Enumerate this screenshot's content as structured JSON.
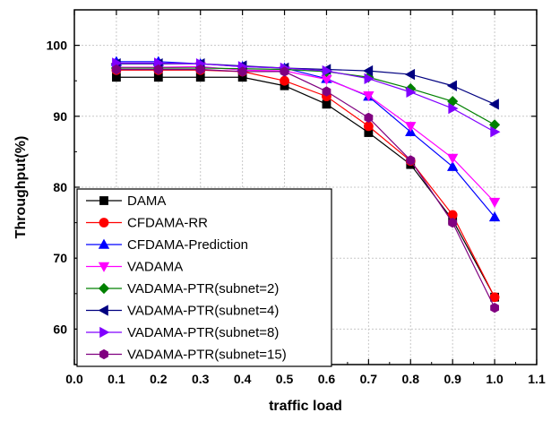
{
  "chart_data": {
    "type": "line",
    "title": "",
    "xlabel": "traffic load",
    "ylabel": "Throughput(%)",
    "xlim": [
      0.0,
      1.1
    ],
    "ylim": [
      55,
      105
    ],
    "xticks": [
      0.0,
      0.1,
      0.2,
      0.3,
      0.4,
      0.5,
      0.6,
      0.7,
      0.8,
      0.9,
      1.0,
      1.1
    ],
    "xtick_labels": [
      "0.0",
      "0.1",
      "0.2",
      "0.3",
      "0.4",
      "0.5",
      "0.6",
      "0.7",
      "0.8",
      "0.9",
      "1.0",
      "1.1"
    ],
    "yticks": [
      60,
      70,
      80,
      90,
      100
    ],
    "ytick_labels": [
      "60",
      "70",
      "80",
      "90",
      "100"
    ],
    "grid": true,
    "legend_position": "bottom-left",
    "x": [
      0.1,
      0.2,
      0.3,
      0.4,
      0.5,
      0.6,
      0.7,
      0.8,
      0.9,
      1.0
    ],
    "series": [
      {
        "name": "DAMA",
        "color": "#000000",
        "marker": "square",
        "values": [
          95.5,
          95.5,
          95.5,
          95.5,
          94.3,
          91.7,
          87.7,
          83.2,
          75.4,
          64.5
        ]
      },
      {
        "name": "CFDAMA-RR",
        "color": "#ff0000",
        "marker": "circle",
        "values": [
          96.5,
          96.5,
          96.5,
          96.3,
          95.0,
          92.8,
          88.6,
          83.7,
          76.1,
          64.5
        ]
      },
      {
        "name": "CFDAMA-Prediction",
        "color": "#0000ff",
        "marker": "triangle-up",
        "values": [
          97.7,
          97.7,
          97.4,
          97.0,
          96.8,
          95.3,
          92.8,
          87.8,
          82.9,
          75.8
        ]
      },
      {
        "name": "VADAMA",
        "color": "#ff00ff",
        "marker": "triangle-down",
        "values": [
          96.9,
          96.9,
          97.0,
          96.5,
          96.4,
          95.2,
          92.9,
          88.6,
          84.1,
          77.9
        ]
      },
      {
        "name": "VADAMA-PTR(subnet=2)",
        "color": "#008000",
        "marker": "diamond",
        "values": [
          96.8,
          96.8,
          96.8,
          96.7,
          96.6,
          96.3,
          95.5,
          93.9,
          92.1,
          88.8
        ]
      },
      {
        "name": "VADAMA-PTR(subnet=4)",
        "color": "#000080",
        "marker": "triangle-left",
        "values": [
          97.4,
          97.4,
          97.4,
          97.1,
          96.8,
          96.6,
          96.4,
          95.9,
          94.3,
          91.7
        ]
      },
      {
        "name": "VADAMA-PTR(subnet=8)",
        "color": "#8000ff",
        "marker": "triangle-right",
        "values": [
          97.5,
          97.5,
          97.4,
          97.0,
          96.8,
          96.4,
          95.3,
          93.4,
          91.1,
          87.8
        ]
      },
      {
        "name": "VADAMA-PTR(subnet=15)",
        "color": "#800080",
        "marker": "hexagon",
        "values": [
          96.6,
          96.6,
          96.6,
          96.3,
          96.3,
          93.5,
          89.8,
          83.8,
          75.0,
          63.0
        ]
      }
    ]
  }
}
